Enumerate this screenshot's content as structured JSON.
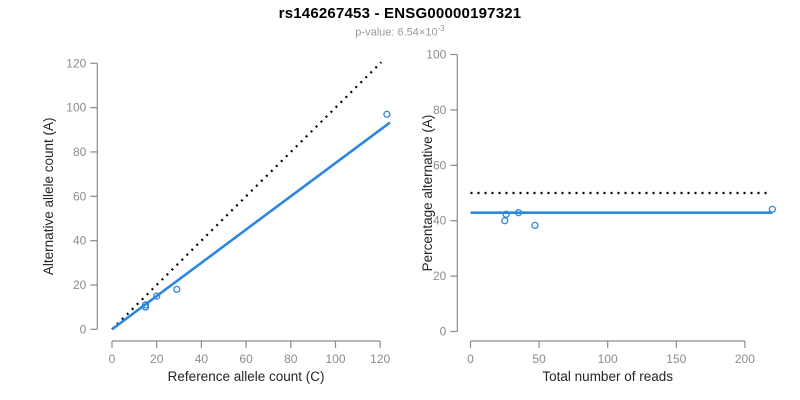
{
  "header": {
    "title": "rs146267453 - ENSG00000197321",
    "subtitle_label": "p-value: 6.54×10",
    "subtitle_exponent": "-3"
  },
  "colors": {
    "accent_blue": "#2d86e0",
    "dotted_black": "#000000",
    "tick_gray": "#8c8c8c",
    "axis_gray": "#8c8c8c",
    "label_dark": "#262626",
    "subtitle_gray": "#9a9a9a",
    "background": "#ffffff"
  },
  "chart_data": [
    {
      "type": "scatter",
      "name": "allele-counts-plot",
      "xlabel": "Reference allele count (C)",
      "ylabel": "Alternative allele count (A)",
      "xlim": [
        0,
        120
      ],
      "ylim": [
        0,
        120
      ],
      "xticks": [
        0,
        20,
        40,
        60,
        80,
        100,
        120
      ],
      "yticks": [
        0,
        20,
        40,
        60,
        80,
        100,
        120
      ],
      "grid": false,
      "legend": null,
      "points": [
        [
          15,
          10
        ],
        [
          15,
          11
        ],
        [
          20,
          15
        ],
        [
          29,
          18
        ],
        [
          123,
          97
        ]
      ],
      "point_color": "#2d86e0",
      "lines": [
        {
          "name": "identity-line",
          "style": "dotted",
          "color": "#000000",
          "points": [
            [
              0,
              0
            ],
            [
              120.5,
              120.5
            ]
          ]
        },
        {
          "name": "regression-line",
          "style": "solid",
          "color": "#2d86e0",
          "points": [
            [
              0,
              0
            ],
            [
              124.4,
              93.3
            ]
          ]
        }
      ]
    },
    {
      "type": "scatter",
      "name": "percentage-alternative-plot",
      "xlabel": "Total number of reads",
      "ylabel": "Percentage alternative (A)",
      "xlim": [
        0,
        200
      ],
      "ylim": [
        0,
        100
      ],
      "xticks": [
        0,
        50,
        100,
        150,
        200
      ],
      "yticks": [
        0,
        20,
        40,
        60,
        80,
        100
      ],
      "grid": false,
      "legend": null,
      "points": [
        [
          25,
          40
        ],
        [
          26,
          42.3
        ],
        [
          35,
          42.9
        ],
        [
          47,
          38.3
        ],
        [
          220,
          44.1
        ]
      ],
      "point_color": "#2d86e0",
      "lines": [
        {
          "name": "expected-50pct-line",
          "style": "dotted",
          "color": "#000000",
          "points": [
            [
              0,
              50
            ],
            [
              218,
              50
            ]
          ]
        },
        {
          "name": "fitted-percentage-line",
          "style": "solid",
          "color": "#2d86e0",
          "points": [
            [
              0,
              42.9
            ],
            [
              220,
              42.9
            ]
          ]
        }
      ]
    }
  ]
}
